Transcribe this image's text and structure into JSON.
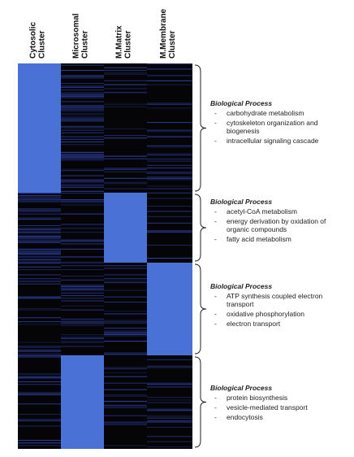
{
  "columns": [
    {
      "lines": [
        "Cytosolic",
        "Cluster"
      ]
    },
    {
      "lines": [
        "Microsomal",
        "Cluster"
      ]
    },
    {
      "lines": [
        "M.Matrix",
        "Cluster"
      ]
    },
    {
      "lines": [
        "M.Membrane",
        "Cluster"
      ]
    }
  ],
  "groups": [
    {
      "heading": "Biological Process",
      "items": [
        {
          "lines": [
            "carbohydrate metabolism"
          ]
        },
        {
          "lines": [
            "cytoskeleton organization and",
            "biogenesis"
          ]
        },
        {
          "lines": [
            "intracellular signaling cascade"
          ]
        }
      ]
    },
    {
      "heading": "Biological Process",
      "items": [
        {
          "lines": [
            "acetyl-CoA metabolism"
          ]
        },
        {
          "lines": [
            "energy derivation by oxidation of",
            "organic compounds"
          ]
        },
        {
          "lines": [
            "fatty acid metabolism"
          ]
        }
      ]
    },
    {
      "heading": "Biological Process",
      "items": [
        {
          "lines": [
            "ATP synthesis coupled electron",
            "transport"
          ]
        },
        {
          "lines": [
            "oxidative phosphorylation"
          ]
        },
        {
          "lines": [
            "electron transport"
          ]
        }
      ]
    },
    {
      "heading": "Biological Process",
      "items": [
        {
          "lines": [
            "protein biosynthesis"
          ]
        },
        {
          "lines": [
            "vesicle-mediated transport"
          ]
        },
        {
          "lines": [
            "endocytosis"
          ]
        }
      ]
    }
  ]
}
